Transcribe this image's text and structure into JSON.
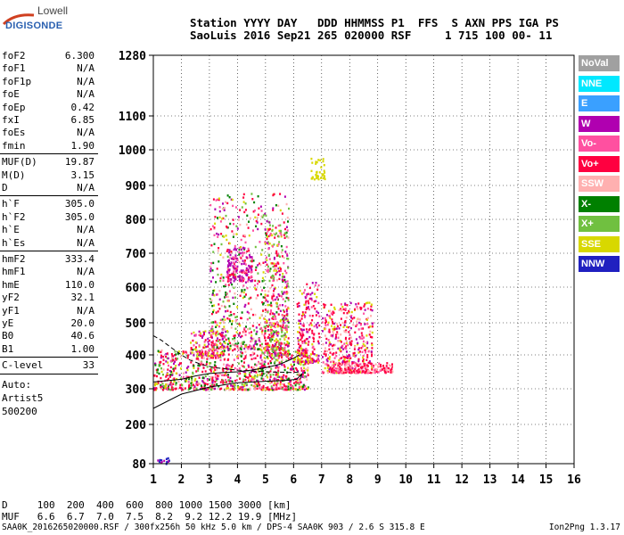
{
  "logo": {
    "line1": "Lowell",
    "line2": "DIGISONDE"
  },
  "header": {
    "line1": "Station YYYY DAY   DDD HHMMSS P1  FFS  S AXN PPS IGA PS",
    "line2": "SaoLuis 2016 Sep21 265 020000 RSF     1 715 100 00- 11"
  },
  "params": [
    {
      "label": "foF2",
      "value": "6.300"
    },
    {
      "label": "foF1",
      "value": "N/A"
    },
    {
      "label": "foF1p",
      "value": "N/A"
    },
    {
      "label": "foE",
      "value": "N/A"
    },
    {
      "label": "foEp",
      "value": "0.42"
    },
    {
      "label": "fxI",
      "value": "6.85"
    },
    {
      "label": "foEs",
      "value": "N/A"
    },
    {
      "label": "fmin",
      "value": "1.90"
    },
    {
      "label": "MUF(D)",
      "value": "19.87"
    },
    {
      "label": "M(D)",
      "value": "3.15"
    },
    {
      "label": "D",
      "value": "N/A"
    },
    {
      "label": "h`F",
      "value": "305.0"
    },
    {
      "label": "h`F2",
      "value": "305.0"
    },
    {
      "label": "h`E",
      "value": "N/A"
    },
    {
      "label": "h`Es",
      "value": "N/A"
    },
    {
      "label": "hmF2",
      "value": "333.4"
    },
    {
      "label": "hmF1",
      "value": "N/A"
    },
    {
      "label": "hmE",
      "value": "110.0"
    },
    {
      "label": "yF2",
      "value": "32.1"
    },
    {
      "label": "yF1",
      "value": "N/A"
    },
    {
      "label": "yE",
      "value": "20.0"
    },
    {
      "label": "B0",
      "value": "40.6"
    },
    {
      "label": "B1",
      "value": "1.00"
    },
    {
      "label": "C-level",
      "value": "33"
    }
  ],
  "auto": {
    "line1": "Auto:",
    "line2": "Artist5",
    "line3": "500200"
  },
  "legend": [
    {
      "label": "NoVal",
      "color": "#a0a0a0"
    },
    {
      "label": "NNE",
      "color": "#00e8ff"
    },
    {
      "label": "E",
      "color": "#3aa0ff"
    },
    {
      "label": "W",
      "color": "#b000b0"
    },
    {
      "label": "Vo-",
      "color": "#ff50a0"
    },
    {
      "label": "Vo+",
      "color": "#ff0040"
    },
    {
      "label": "SSW",
      "color": "#ffb0b0"
    },
    {
      "label": "X-",
      "color": "#008000"
    },
    {
      "label": "X+",
      "color": "#70c040"
    },
    {
      "label": "SSE",
      "color": "#d8d800"
    },
    {
      "label": "NNW",
      "color": "#2020c0"
    }
  ],
  "bottom": {
    "line1": "D     100  200  400  600  800 1000 1500 3000 [km]",
    "line2": "MUF   6.6  6.7  7.0  7.5  8.2  9.2 12.2 19.9 [MHz]"
  },
  "footer": {
    "left": "SAA0K_2016265020000.RSF / 300fx256h 50 kHz 5.0 km / DPS-4 SAA0K 903 / 2.6 S 315.8 E",
    "right": "Ion2Png 1.3.17"
  },
  "chart_data": {
    "type": "scatter",
    "x_ticks": [
      "1",
      "2",
      "3",
      "4",
      "5",
      "6",
      "7",
      "8",
      "9",
      "10",
      "11",
      "12",
      "13",
      "14",
      "15",
      "16"
    ],
    "y_ticks": [
      "80",
      "200",
      "300",
      "400",
      "500",
      "600",
      "700",
      "800",
      "900",
      "1000",
      "1100",
      "1280"
    ],
    "xlim": [
      1,
      16
    ],
    "ylim": [
      80,
      1280
    ],
    "grid": true,
    "traces": [
      {
        "style": "solid",
        "x": [
          1.0,
          1.5,
          2.0,
          3.0,
          4.0,
          5.0,
          5.8,
          6.1,
          6.2,
          6.3,
          6.25
        ],
        "y": [
          245,
          265,
          285,
          305,
          318,
          322,
          325,
          328,
          335,
          345,
          330
        ]
      },
      {
        "style": "dashed",
        "x": [
          1.0,
          1.3,
          1.6,
          2.0,
          2.3,
          2.7,
          3.2,
          4.0,
          5.0,
          6.0,
          6.2
        ],
        "y": [
          460,
          445,
          425,
          400,
          385,
          372,
          362,
          355,
          350,
          348,
          350
        ]
      },
      {
        "style": "solid",
        "x": [
          1.0,
          2.0,
          2.5,
          3.0,
          3.5,
          4.0,
          4.5,
          5.0,
          5.5,
          6.0,
          6.2
        ],
        "y": [
          320,
          328,
          338,
          345,
          348,
          350,
          355,
          362,
          372,
          390,
          400
        ]
      }
    ]
  }
}
